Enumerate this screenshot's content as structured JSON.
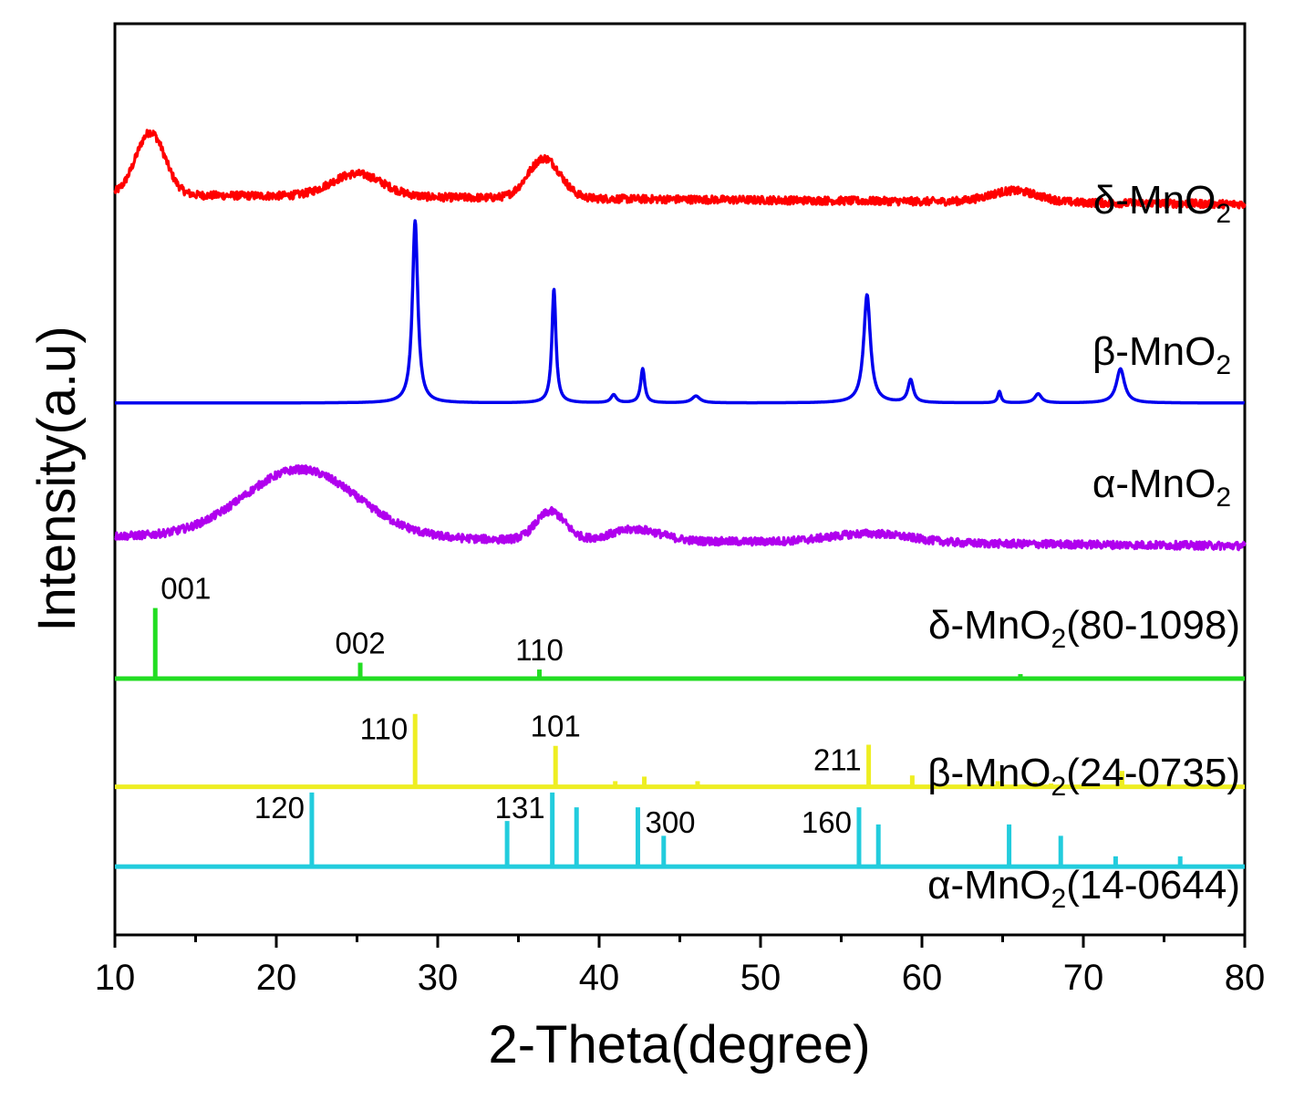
{
  "chart_data": {
    "type": "line",
    "xlabel": "2-Theta(degree)",
    "ylabel": "Intensity(a.u)",
    "xlim": [
      10,
      80
    ],
    "xticks": [
      10,
      20,
      30,
      40,
      50,
      60,
      70,
      80
    ],
    "grid": false,
    "series": [
      {
        "name": "δ-MnO2",
        "label_main": "δ-MnO",
        "label_sub": "2",
        "label_suffix": "",
        "color": "#ff0000",
        "kind": "noisy",
        "baseline": 0.15,
        "noise": 0.035,
        "stack_offset": 6.35,
        "peaks": [
          {
            "x": 12.2,
            "h": 0.55,
            "w": 0.9
          },
          {
            "x": 25.0,
            "h": 0.2,
            "w": 1.6
          },
          {
            "x": 36.6,
            "h": 0.35,
            "w": 1.0
          },
          {
            "x": 65.7,
            "h": 0.1,
            "w": 1.5
          }
        ]
      },
      {
        "name": "β-MnO2",
        "label_main": "β-MnO",
        "label_sub": "2",
        "label_suffix": "",
        "color": "#0000ee",
        "kind": "smooth",
        "baseline": 0.0,
        "noise": 0,
        "stack_offset": 4.67,
        "peaks": [
          {
            "x": 28.6,
            "h": 1.6,
            "w": 0.2
          },
          {
            "x": 37.2,
            "h": 1.0,
            "w": 0.15
          },
          {
            "x": 40.9,
            "h": 0.07,
            "w": 0.2
          },
          {
            "x": 42.7,
            "h": 0.3,
            "w": 0.15
          },
          {
            "x": 46.0,
            "h": 0.06,
            "w": 0.3
          },
          {
            "x": 56.6,
            "h": 0.95,
            "w": 0.25
          },
          {
            "x": 59.3,
            "h": 0.2,
            "w": 0.2
          },
          {
            "x": 64.8,
            "h": 0.1,
            "w": 0.12
          },
          {
            "x": 67.2,
            "h": 0.08,
            "w": 0.25
          },
          {
            "x": 72.3,
            "h": 0.3,
            "w": 0.3
          }
        ]
      },
      {
        "name": "α-MnO2",
        "label_main": "α-MnO",
        "label_sub": "2",
        "label_suffix": "",
        "color": "#b000ee",
        "kind": "noisy",
        "baseline": 0.15,
        "noise": 0.035,
        "stack_offset": 3.35,
        "peaks": [
          {
            "x": 21.5,
            "h": 0.6,
            "w": 3.5
          },
          {
            "x": 37.0,
            "h": 0.25,
            "w": 0.9
          },
          {
            "x": 42.3,
            "h": 0.1,
            "w": 1.5
          },
          {
            "x": 56.8,
            "h": 0.08,
            "w": 2.5
          }
        ]
      }
    ],
    "references": [
      {
        "name": "δ-MnO2(80-1098)",
        "label_main": "δ-MnO",
        "label_sub": "2",
        "label_suffix": "(80-1098)",
        "color": "#22dd22",
        "baseline_value": 2.25,
        "peaks": [
          {
            "x": 12.5,
            "h": 0.62,
            "hkl": "001"
          },
          {
            "x": 25.2,
            "h": 0.14,
            "hkl": "002"
          },
          {
            "x": 36.3,
            "h": 0.08,
            "hkl": "110"
          },
          {
            "x": 66.1,
            "h": 0.04,
            "hkl": ""
          }
        ]
      },
      {
        "name": "β-MnO2(24-0735)",
        "label_main": "β-MnO",
        "label_sub": "2",
        "label_suffix": "(24-0735)",
        "color": "#eeee22",
        "baseline_value": 1.3,
        "peaks": [
          {
            "x": 28.6,
            "h": 0.64,
            "hkl": "110"
          },
          {
            "x": 37.3,
            "h": 0.36,
            "hkl": "101"
          },
          {
            "x": 41.0,
            "h": 0.05,
            "hkl": ""
          },
          {
            "x": 42.8,
            "h": 0.09,
            "hkl": ""
          },
          {
            "x": 46.1,
            "h": 0.05,
            "hkl": ""
          },
          {
            "x": 56.7,
            "h": 0.37,
            "hkl": "211"
          },
          {
            "x": 59.4,
            "h": 0.1,
            "hkl": ""
          },
          {
            "x": 64.7,
            "h": 0.05,
            "hkl": ""
          },
          {
            "x": 67.0,
            "h": 0.04,
            "hkl": ""
          },
          {
            "x": 68.0,
            "h": 0.03,
            "hkl": ""
          },
          {
            "x": 72.4,
            "h": 0.14,
            "hkl": ""
          }
        ]
      },
      {
        "name": "α-MnO2(14-0644)",
        "label_main": "α-MnO",
        "label_sub": "2",
        "label_suffix": "(14-0644)",
        "color": "#22ccdd",
        "baseline_value": 0.6,
        "peaks": [
          {
            "x": 22.2,
            "h": 0.65,
            "hkl": "120"
          },
          {
            "x": 34.3,
            "h": 0.4,
            "hkl": ""
          },
          {
            "x": 37.1,
            "h": 0.65,
            "hkl": "131"
          },
          {
            "x": 38.6,
            "h": 0.52,
            "hkl": ""
          },
          {
            "x": 42.4,
            "h": 0.52,
            "hkl": "300"
          },
          {
            "x": 44.0,
            "h": 0.27,
            "hkl": ""
          },
          {
            "x": 56.1,
            "h": 0.52,
            "hkl": "160"
          },
          {
            "x": 57.3,
            "h": 0.37,
            "hkl": ""
          },
          {
            "x": 65.4,
            "h": 0.37,
            "hkl": ""
          },
          {
            "x": 68.6,
            "h": 0.27,
            "hkl": ""
          },
          {
            "x": 72.0,
            "h": 0.09,
            "hkl": ""
          },
          {
            "x": 76.0,
            "h": 0.09,
            "hkl": ""
          }
        ]
      }
    ]
  }
}
